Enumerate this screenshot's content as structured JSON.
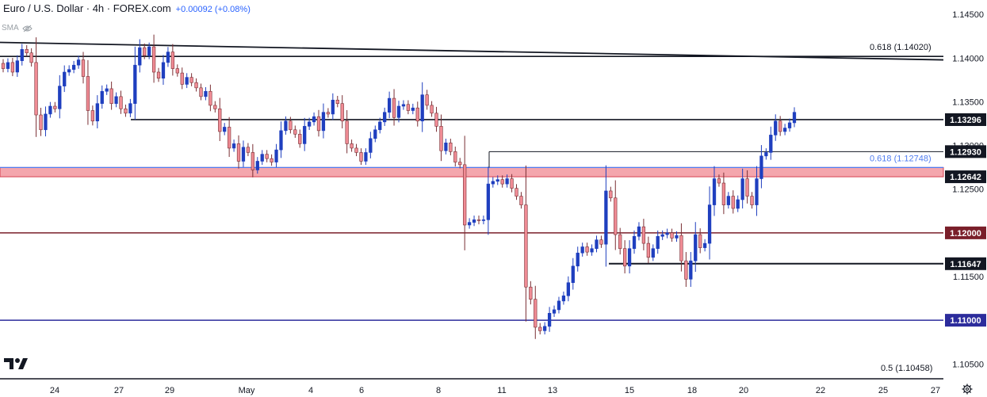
{
  "header": {
    "title": "Euro / U.S. Dollar · 4h · FOREX.com",
    "change": "+0.00092 (+0.08%)"
  },
  "indicator": {
    "label": "SMA",
    "icon": "eye-crossed-icon"
  },
  "logo": {
    "icon": "tradingview-logo"
  },
  "settings": {
    "icon": "gear-icon"
  },
  "colors": {
    "bull": "#1f3fbf",
    "bear": "#f08c95",
    "bear_border": "#7a2f34",
    "blue_line": "#4f7cf0",
    "zone_fill": "#f4a6ad",
    "zone_border": "#d64050",
    "maroon": "#7a1f2a",
    "navy": "#2c2c9c"
  },
  "chart_data": {
    "type": "candlestick",
    "ylim": [
      1.1033,
      1.1462
    ],
    "x_ticks": [
      "24",
      "27",
      "29",
      "May",
      "4",
      "6",
      "8",
      "11",
      "13",
      "15",
      "18",
      "20",
      "22",
      "25",
      "27"
    ],
    "y_ticks": [
      "1.14500",
      "1.14000",
      "1.13500",
      "1.13000",
      "1.12500",
      "1.12000",
      "1.11500",
      "1.11000",
      "1.10500"
    ],
    "price_labels": [
      "1.13296",
      "1.12930",
      "1.12642",
      "1.12000",
      "1.11647",
      "1.11000"
    ],
    "levels": [
      {
        "label": "0.618 (1.14020)",
        "value": 1.1402
      },
      {
        "label": "0.618 (1.12748)",
        "value": 1.12748
      },
      {
        "label": "0.5 (1.10458)",
        "value": 1.10458
      },
      {
        "label": "1.13296",
        "value": 1.13296
      },
      {
        "label": "1.12930",
        "value": 1.1293
      },
      {
        "label": "1.12642",
        "value": 1.12642
      },
      {
        "label": "1.12000",
        "value": 1.12
      },
      {
        "label": "1.11647",
        "value": 1.11647
      },
      {
        "label": "1.11000",
        "value": 1.11
      }
    ],
    "trendline": {
      "start": 1.1418,
      "end": 1.1398
    },
    "zone": [
      1.12642,
      1.12748
    ],
    "closes": [
      1.1388,
      1.1395,
      1.1384,
      1.1397,
      1.141,
      1.1406,
      1.1395,
      1.1335,
      1.1318,
      1.1336,
      1.1345,
      1.1342,
      1.1368,
      1.1384,
      1.1387,
      1.1392,
      1.1398,
      1.1379,
      1.134,
      1.1328,
      1.1348,
      1.1362,
      1.1365,
      1.1348,
      1.1356,
      1.1342,
      1.1337,
      1.1348,
      1.1392,
      1.1412,
      1.1403,
      1.1413,
      1.1384,
      1.1377,
      1.1395,
      1.1407,
      1.1388,
      1.1383,
      1.137,
      1.1378,
      1.1372,
      1.1366,
      1.1356,
      1.1362,
      1.1346,
      1.1342,
      1.1316,
      1.1321,
      1.1297,
      1.1302,
      1.1282,
      1.1298,
      1.1292,
      1.1272,
      1.1282,
      1.129,
      1.1285,
      1.1281,
      1.1295,
      1.1317,
      1.1328,
      1.1318,
      1.1313,
      1.1302,
      1.1322,
      1.1327,
      1.1333,
      1.1317,
      1.1338,
      1.1336,
      1.1352,
      1.1348,
      1.1328,
      1.1302,
      1.1297,
      1.1292,
      1.1282,
      1.1292,
      1.1308,
      1.1318,
      1.1327,
      1.1338,
      1.1354,
      1.1332,
      1.1345,
      1.1347,
      1.134,
      1.1343,
      1.1328,
      1.1358,
      1.1346,
      1.1337,
      1.1322,
      1.1294,
      1.1303,
      1.1293,
      1.1281,
      1.1278,
      1.1209,
      1.1212,
      1.1215,
      1.1214,
      1.1215,
      1.1256,
      1.1259,
      1.1261,
      1.1256,
      1.1262,
      1.1251,
      1.1242,
      1.1232,
      1.1138,
      1.1124,
      1.1092,
      1.1088,
      1.1093,
      1.1108,
      1.1112,
      1.1122,
      1.1128,
      1.1143,
      1.1162,
      1.1177,
      1.1184,
      1.1178,
      1.1182,
      1.1192,
      1.1187,
      1.1248,
      1.124,
      1.1198,
      1.1182,
      1.1162,
      1.1182,
      1.1196,
      1.1207,
      1.1188,
      1.1172,
      1.1182,
      1.1196,
      1.1198,
      1.12,
      1.1194,
      1.1197,
      1.1168,
      1.1147,
      1.1168,
      1.1198,
      1.1183,
      1.1188,
      1.1232,
      1.1262,
      1.1257,
      1.1232,
      1.1242,
      1.1228,
      1.1238,
      1.1262,
      1.1242,
      1.1232,
      1.1262,
      1.1288,
      1.1292,
      1.1312,
      1.1328,
      1.1316,
      1.132,
      1.1326,
      1.1338
    ]
  }
}
